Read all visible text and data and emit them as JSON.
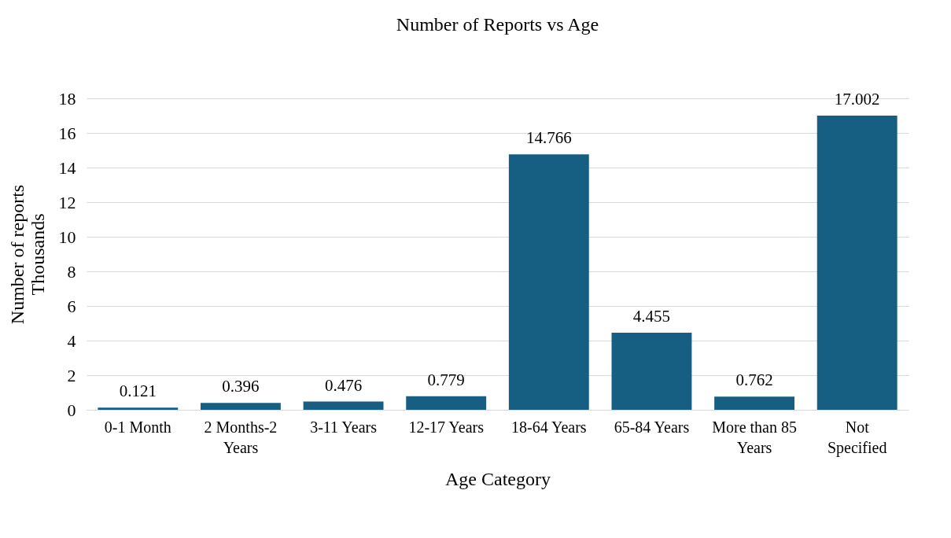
{
  "chart_data": {
    "type": "bar",
    "title": "Number of Reports vs Age",
    "xlabel": "Age Category",
    "ylabel": "Number of reports",
    "annotations": [
      "Thousands"
    ],
    "categories": [
      "0-1 Month",
      "2 Months-2 Years",
      "3-11 Years",
      "12-17 Years",
      "18-64 Years",
      "65-84 Years",
      "More than 85 Years",
      "Not Specified"
    ],
    "values": [
      0.121,
      0.396,
      0.476,
      0.779,
      14.766,
      4.455,
      0.762,
      17.002
    ],
    "color": "#175f82",
    "ylim": [
      0,
      18
    ],
    "yticks": [
      0,
      2,
      4,
      6,
      8,
      10,
      12,
      14,
      16,
      18
    ],
    "grid": "y",
    "data_labels": true
  }
}
